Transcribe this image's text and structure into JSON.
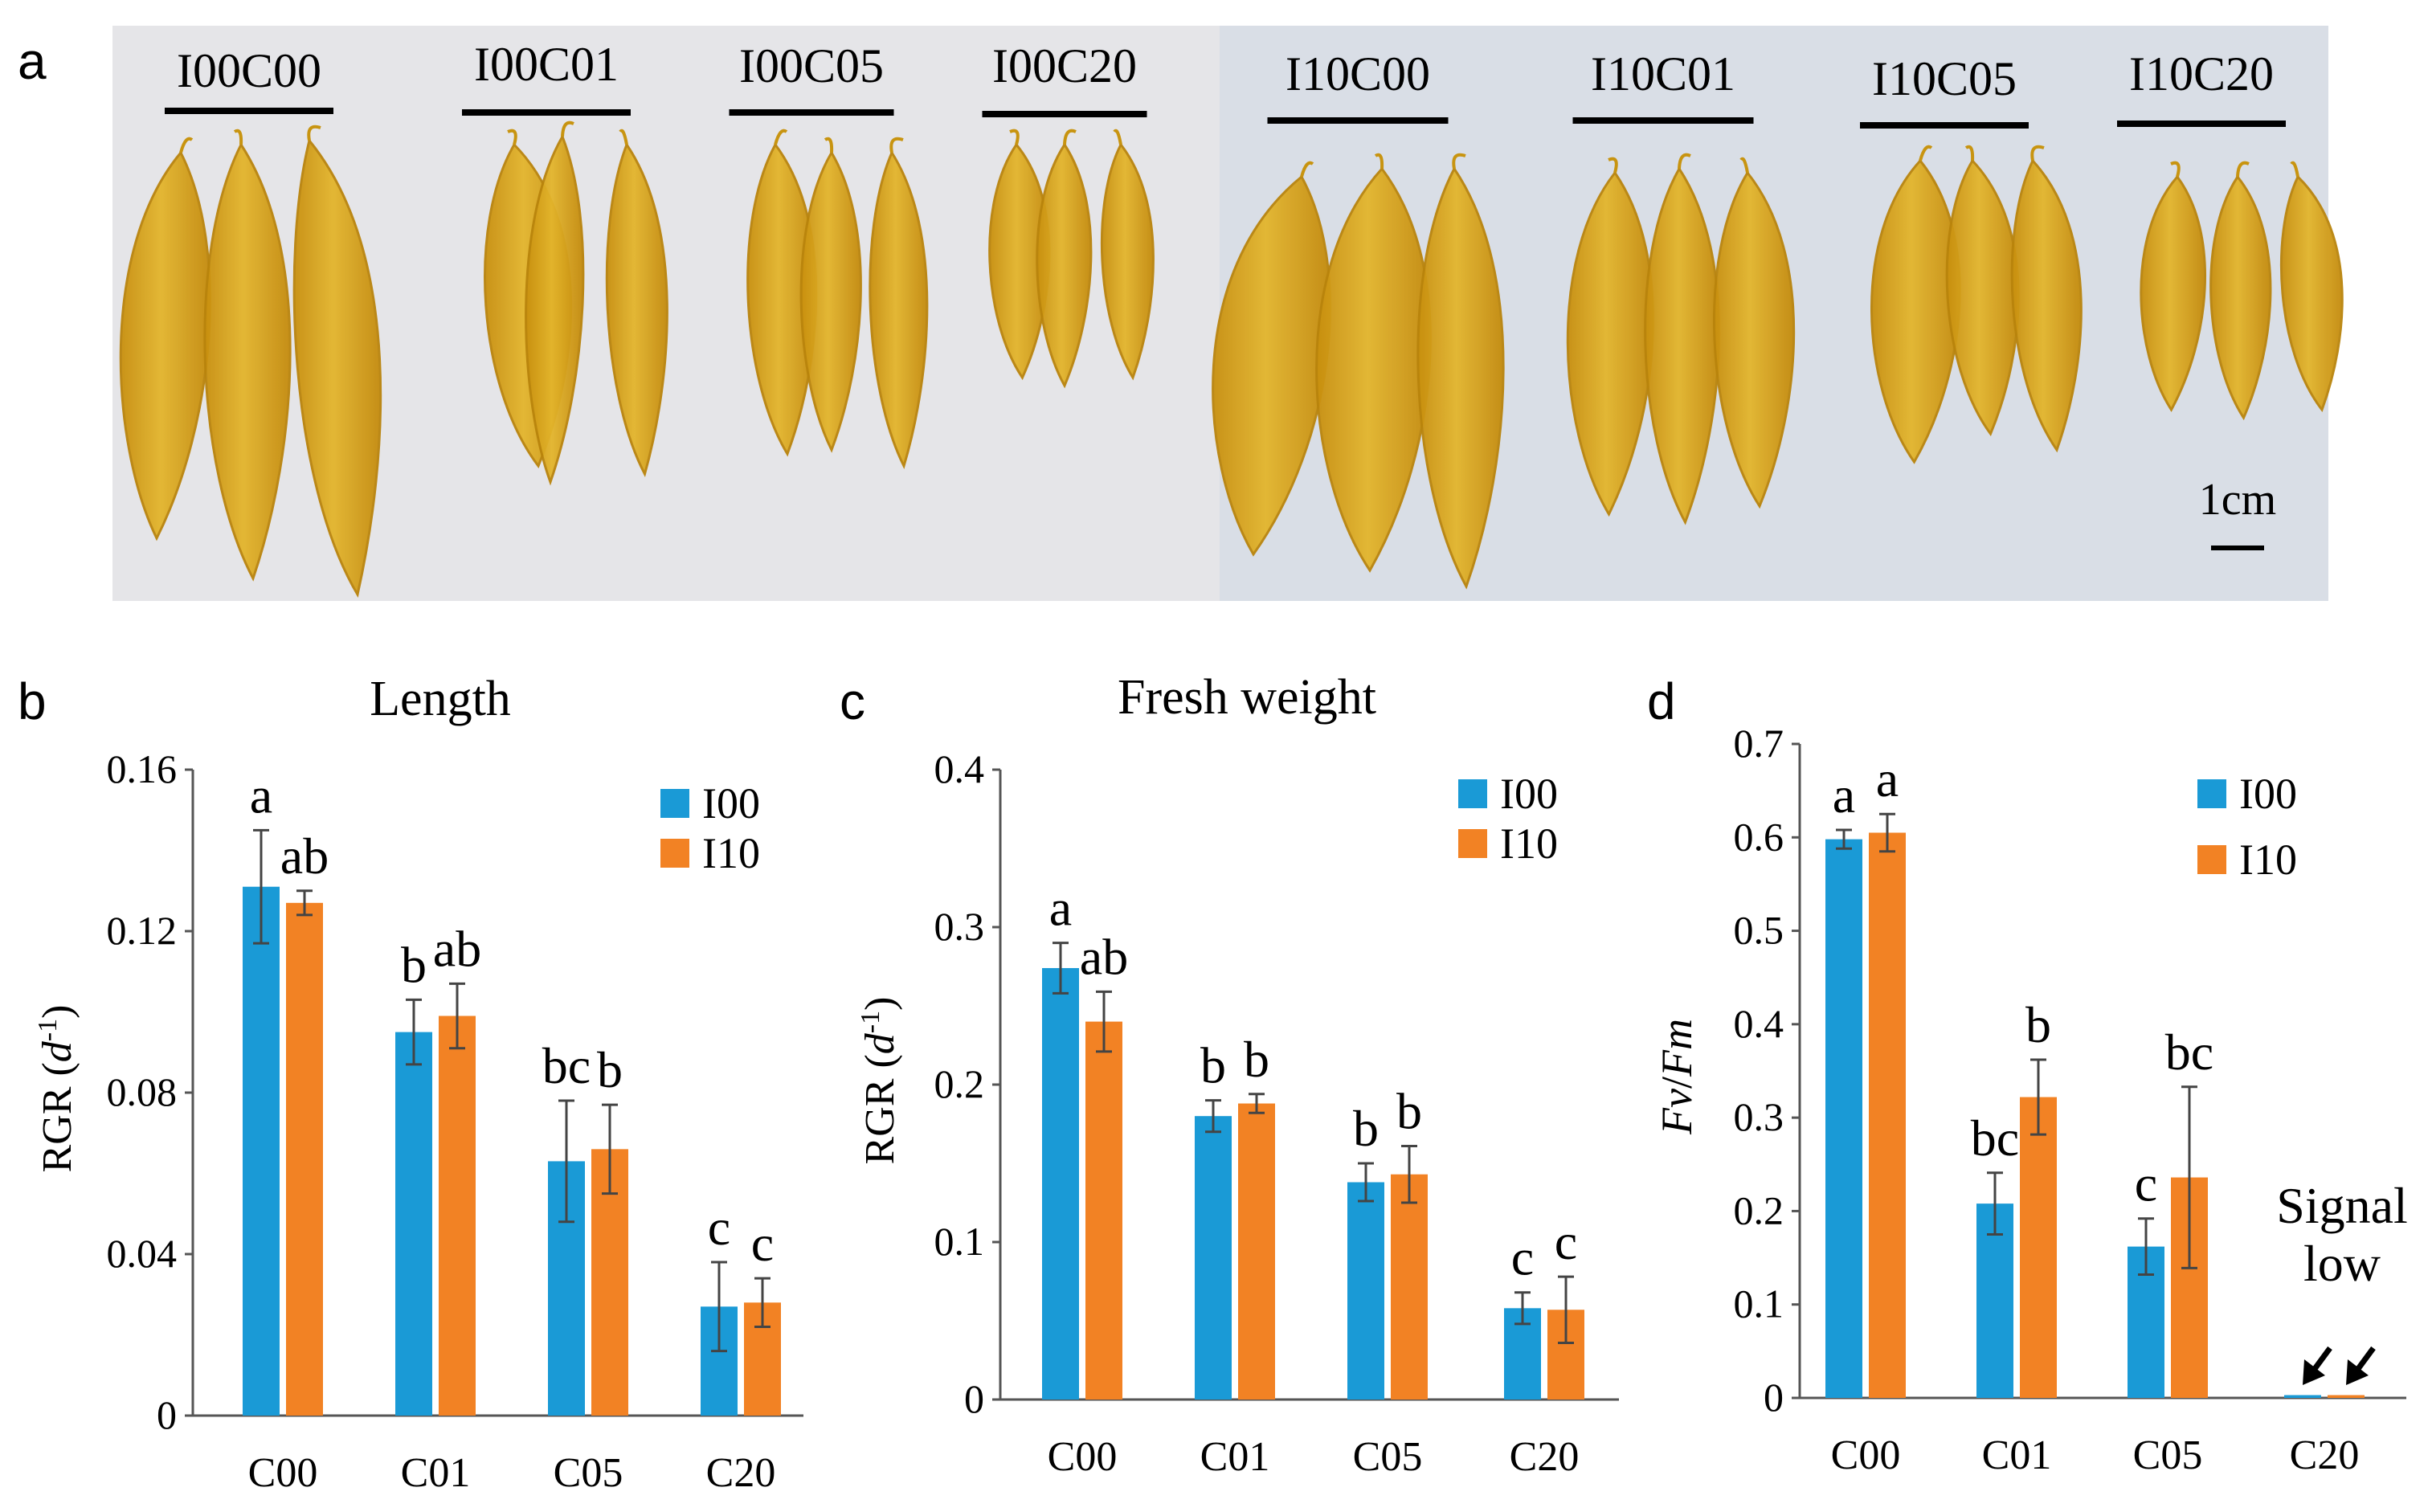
{
  "panel_a": {
    "letter": "a",
    "labels": [
      "I00C00",
      "I00C01",
      "I00C05",
      "I00C20",
      "I10C00",
      "I10C01",
      "I10C05",
      "I10C20"
    ],
    "scale_label": "1cm",
    "colors": {
      "background_left": "#e6e6e9",
      "background_right": "#dadfe8",
      "kelp_light": "#e2b62b",
      "kelp_dark": "#c89410",
      "kelp_edge": "#b9840c"
    }
  },
  "colors": {
    "I00": "#1a9ad6",
    "I10": "#f28224",
    "axis": "#555555",
    "error": "#444444"
  },
  "chart_data": [
    {
      "panel": "b",
      "type": "bar",
      "title": "Length",
      "ylabel": "RGR (d⁻¹)",
      "ylabel_text": "RGR (",
      "ylabel_unit": "d",
      "ylabel_sup": "-1",
      "ylabel_close": ")",
      "xlabel": "",
      "ylim": [
        0,
        0.16
      ],
      "yticks": [
        0,
        0.04,
        0.08,
        0.12,
        0.16
      ],
      "ytick_labels": [
        "0",
        "0.04",
        "0.08",
        "0.12",
        "0.16"
      ],
      "categories": [
        "C00",
        "C01",
        "C05",
        "C20"
      ],
      "series": [
        {
          "name": "I00",
          "values": [
            0.131,
            0.095,
            0.063,
            0.027
          ],
          "errors": [
            0.014,
            0.008,
            0.015,
            0.011
          ],
          "letters": [
            "a",
            "b",
            "bc",
            "c"
          ]
        },
        {
          "name": "I10",
          "values": [
            0.127,
            0.099,
            0.066,
            0.028
          ],
          "errors": [
            0.003,
            0.008,
            0.011,
            0.006
          ],
          "letters": [
            "ab",
            "ab",
            "b",
            "c"
          ]
        }
      ],
      "legend": [
        "I00",
        "I10"
      ],
      "annotation": null
    },
    {
      "panel": "c",
      "type": "bar",
      "title": "Fresh weight",
      "ylabel": "RGR (d⁻¹)",
      "ylabel_text": "RGR (",
      "ylabel_unit": "d",
      "ylabel_sup": "-1",
      "ylabel_close": ")",
      "xlabel": "",
      "ylim": [
        0,
        0.4
      ],
      "yticks": [
        0,
        0.1,
        0.2,
        0.3,
        0.4
      ],
      "ytick_labels": [
        "0",
        "0.1",
        "0.2",
        "0.3",
        "0.4"
      ],
      "categories": [
        "C00",
        "C01",
        "C05",
        "C20"
      ],
      "series": [
        {
          "name": "I00",
          "values": [
            0.274,
            0.18,
            0.138,
            0.058
          ],
          "errors": [
            0.016,
            0.01,
            0.012,
            0.01
          ],
          "letters": [
            "a",
            "b",
            "b",
            "c"
          ]
        },
        {
          "name": "I10",
          "values": [
            0.24,
            0.188,
            0.143,
            0.057
          ],
          "errors": [
            0.019,
            0.006,
            0.018,
            0.021
          ],
          "letters": [
            "ab",
            "b",
            "b",
            "c"
          ]
        }
      ],
      "legend": [
        "I00",
        "I10"
      ],
      "annotation": null
    },
    {
      "panel": "d",
      "type": "bar",
      "title": "",
      "ylabel": "Fv/Fm",
      "ylabel_parts": [
        "Fv",
        "/",
        "Fm"
      ],
      "xlabel": "",
      "ylim": [
        0,
        0.7
      ],
      "yticks": [
        0,
        0.1,
        0.2,
        0.3,
        0.4,
        0.5,
        0.6,
        0.7
      ],
      "ytick_labels": [
        "0",
        "0.1",
        "0.2",
        "0.3",
        "0.4",
        "0.5",
        "0.6",
        "0.7"
      ],
      "categories": [
        "C00",
        "C01",
        "C05",
        "C20"
      ],
      "series": [
        {
          "name": "I00",
          "values": [
            0.598,
            0.208,
            0.162,
            0.003
          ],
          "errors": [
            0.01,
            0.033,
            0.03,
            0
          ],
          "letters": [
            "a",
            "bc",
            "c",
            ""
          ]
        },
        {
          "name": "I10",
          "values": [
            0.605,
            0.322,
            0.236,
            0.003
          ],
          "errors": [
            0.02,
            0.04,
            0.097,
            0
          ],
          "letters": [
            "a",
            "b",
            "bc",
            ""
          ]
        }
      ],
      "legend": [
        "I00",
        "I10"
      ],
      "annotation": {
        "lines": [
          "Signal",
          "low"
        ],
        "category": "C20"
      }
    }
  ]
}
